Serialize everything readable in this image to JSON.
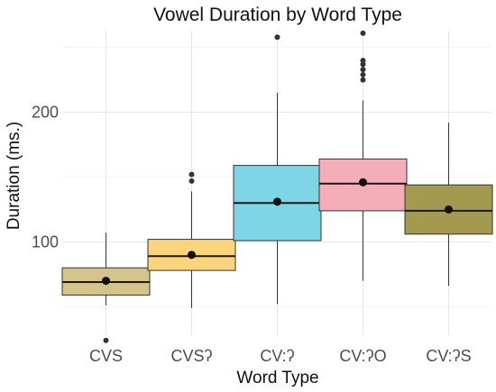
{
  "chart_data": {
    "type": "box",
    "title": "Vowel Duration by Word Type",
    "xlabel": "Word Type",
    "ylabel": "Duration (ms.)",
    "ylim": [
      28,
      263
    ],
    "y_ticks": [
      100,
      200
    ],
    "grid": true,
    "categories": [
      "CVS",
      "CVSʔ",
      "CV:ʔ",
      "CV:ʔO",
      "CV:ʔS"
    ],
    "boxes": [
      {
        "category": "CVS",
        "color": "#d4c48a",
        "whisker_low": 51,
        "q1": 59,
        "median": 69,
        "q3": 80,
        "whisker_high": 107,
        "mean": 70,
        "outliers": [
          24
        ]
      },
      {
        "category": "CVSʔ",
        "color": "#fad57c",
        "whisker_low": 49,
        "q1": 78,
        "median": 89,
        "q3": 102,
        "whisker_high": 139,
        "mean": 90,
        "outliers": [
          147,
          152
        ]
      },
      {
        "category": "CV:ʔ",
        "color": "#7dd5e6",
        "whisker_low": 52,
        "q1": 101,
        "median": 130,
        "q3": 159,
        "whisker_high": 215,
        "mean": 131,
        "outliers": [
          258
        ]
      },
      {
        "category": "CV:ʔO",
        "color": "#f5adb8",
        "whisker_low": 70,
        "q1": 124,
        "median": 145,
        "q3": 164,
        "whisker_high": 209,
        "mean": 146,
        "outliers": [
          225,
          229,
          233,
          237,
          240,
          261
        ]
      },
      {
        "category": "CV:ʔS",
        "color": "#a39a50",
        "whisker_low": 66,
        "q1": 106,
        "median": 124,
        "q3": 144,
        "whisker_high": 192,
        "mean": 125,
        "outliers": []
      }
    ]
  }
}
